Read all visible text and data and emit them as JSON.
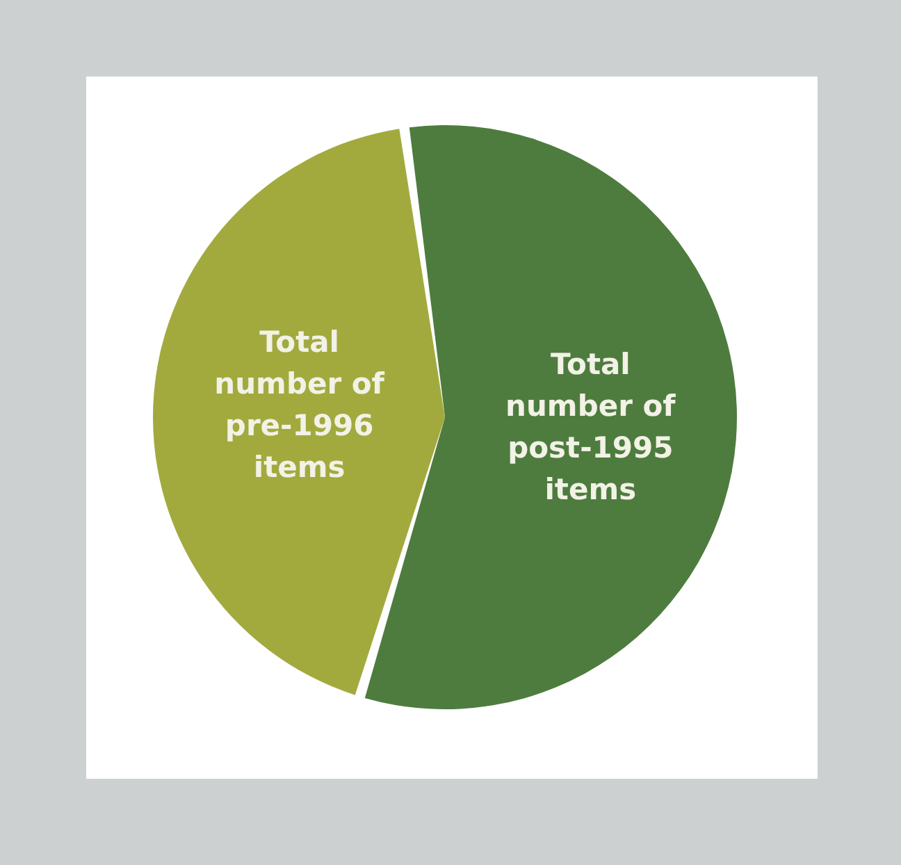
{
  "chart_data": {
    "type": "pie",
    "categories": [
      "Total number of post-1995 items",
      "Total number of pre-1996 items"
    ],
    "values": [
      57,
      43
    ],
    "colors": [
      "#4e7c3f",
      "#a2aa3e"
    ]
  }
}
